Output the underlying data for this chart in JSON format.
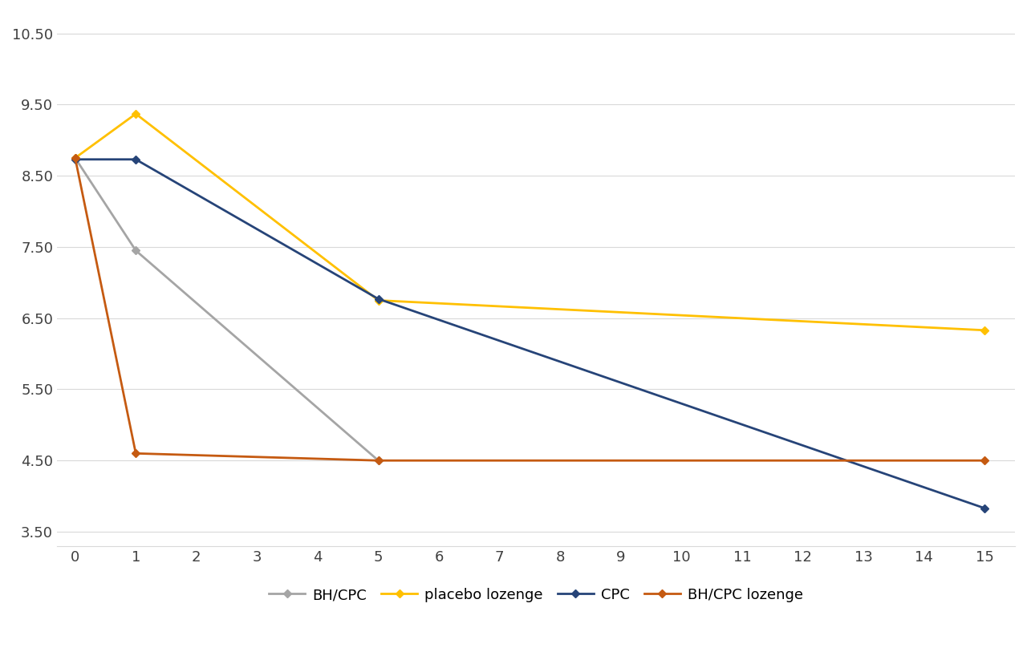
{
  "series": [
    {
      "label": "BH/CPC",
      "color": "#a5a5a5",
      "x": [
        0,
        1,
        5
      ],
      "y": [
        8.75,
        7.45,
        4.5
      ]
    },
    {
      "label": "placebo lozenge",
      "color": "#ffc000",
      "x": [
        0,
        1,
        5,
        15
      ],
      "y": [
        8.75,
        9.37,
        6.75,
        6.33
      ]
    },
    {
      "label": "CPC",
      "color": "#264478",
      "x": [
        0,
        1,
        5,
        15
      ],
      "y": [
        8.73,
        8.73,
        6.77,
        3.83
      ]
    },
    {
      "label": "BH/CPC lozenge",
      "color": "#c55a11",
      "x": [
        0,
        1,
        5,
        15
      ],
      "y": [
        8.75,
        4.6,
        4.5,
        4.5
      ]
    }
  ],
  "xlim": [
    -0.3,
    15.5
  ],
  "ylim": [
    3.3,
    10.8
  ],
  "yticks": [
    3.5,
    4.5,
    5.5,
    6.5,
    7.5,
    8.5,
    9.5,
    10.5
  ],
  "xticks": [
    0,
    1,
    2,
    3,
    4,
    5,
    6,
    7,
    8,
    9,
    10,
    11,
    12,
    13,
    14,
    15
  ],
  "background_color": "#ffffff",
  "grid_color": "#d9d9d9",
  "marker": "D",
  "marker_size": 5,
  "linewidth": 2.0
}
